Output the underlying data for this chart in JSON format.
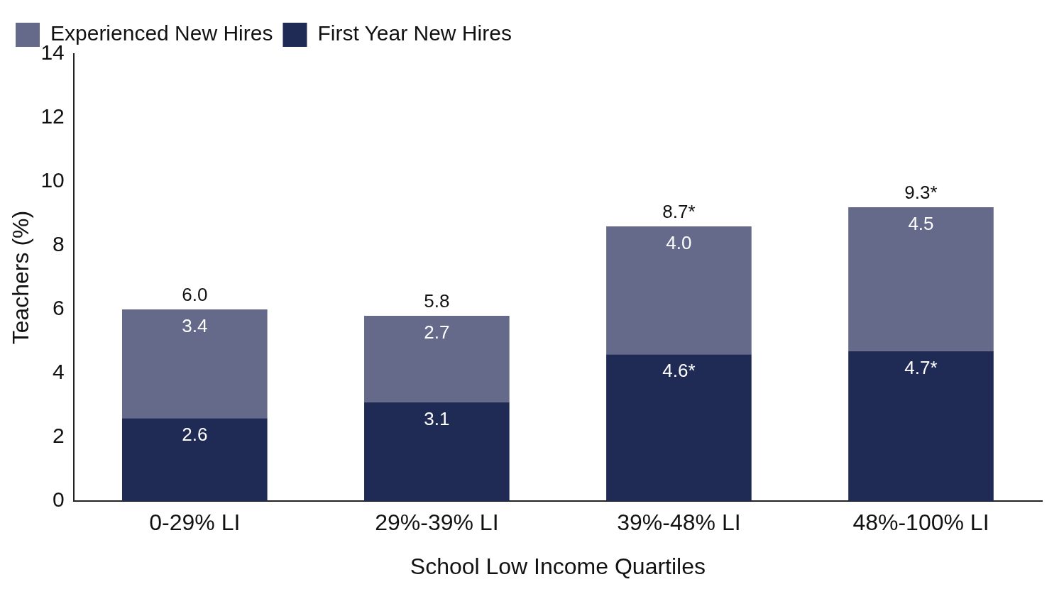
{
  "chart_data": {
    "type": "bar",
    "stacked": true,
    "xlabel": "School Low Income Quartiles",
    "ylabel": "Teachers (%)",
    "categories": [
      "0-29% LI",
      "29%-39% LI",
      "39%-48% LI",
      "48%-100% LI"
    ],
    "series": [
      {
        "name": "First Year New Hires",
        "color": "#1f2a55",
        "values": [
          2.6,
          3.1,
          4.6,
          4.7
        ],
        "value_labels": [
          "2.6",
          "3.1",
          "4.6*",
          "4.7*"
        ]
      },
      {
        "name": "Experienced New Hires",
        "color": "#656a8a",
        "values": [
          3.4,
          2.7,
          4.0,
          4.5
        ],
        "value_labels": [
          "3.4",
          "2.7",
          "4.0",
          "4.5"
        ]
      }
    ],
    "totals": [
      "6.0",
      "5.8",
      "8.7*",
      "9.3*"
    ],
    "ylim": [
      0,
      14
    ],
    "yticks": [
      0,
      2,
      4,
      6,
      8,
      10,
      12,
      14
    ],
    "grid": false,
    "legend": "top left"
  }
}
